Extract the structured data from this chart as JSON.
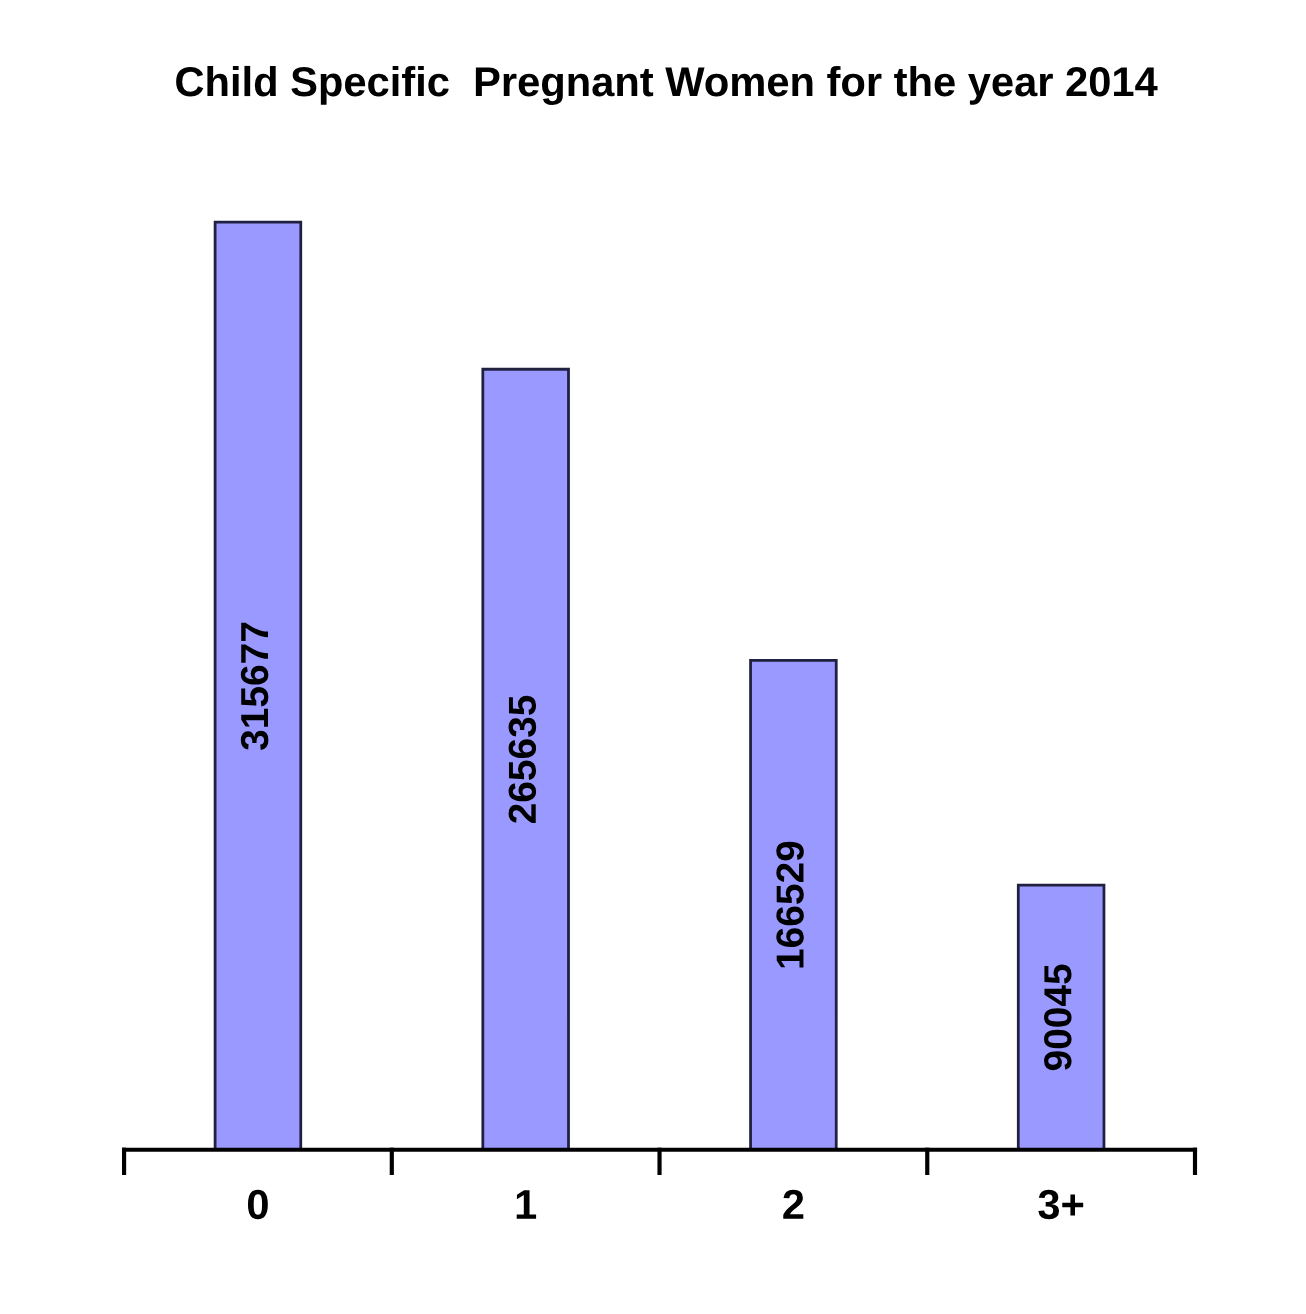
{
  "chart_data": {
    "type": "bar",
    "title": "Child Specific  Pregnant Women for the year 2014",
    "categories": [
      "0",
      "1",
      "2",
      "3+"
    ],
    "values": [
      315677,
      265635,
      166529,
      90045
    ],
    "color": "#9999ff",
    "data_labels": true,
    "grid": false,
    "legend": false
  }
}
